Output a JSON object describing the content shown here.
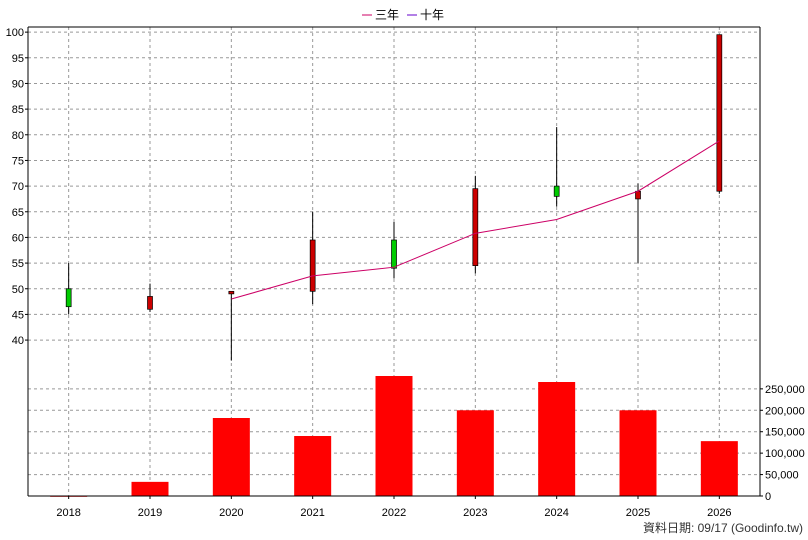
{
  "chart_data": {
    "type": "candlestick+line+bar",
    "legend": [
      {
        "name": "三年",
        "color": "#cc0066"
      },
      {
        "name": "十年",
        "color": "#6600cc"
      }
    ],
    "x": [
      "2018",
      "2019",
      "2020",
      "2021",
      "2022",
      "2023",
      "2024",
      "2025",
      "2026"
    ],
    "price_axis": {
      "ylim": [
        33,
        101
      ],
      "ticks": [
        40,
        45,
        50,
        55,
        60,
        65,
        70,
        75,
        80,
        85,
        90,
        95,
        100
      ]
    },
    "candles": [
      {
        "year": "2018",
        "open": 46.5,
        "close": 50.0,
        "high": 55.0,
        "low": 45.0,
        "color": "#00cc00"
      },
      {
        "year": "2019",
        "open": 48.5,
        "close": 46.0,
        "high": 51.0,
        "low": 45.5,
        "color": "#cc0000"
      },
      {
        "year": "2020",
        "open": 49.5,
        "close": 49.0,
        "high": 49.5,
        "low": 36.0,
        "color": "#cc0000"
      },
      {
        "year": "2021",
        "open": 59.5,
        "close": 49.5,
        "high": 65.0,
        "low": 47.0,
        "color": "#cc0000"
      },
      {
        "year": "2022",
        "open": 54.0,
        "close": 59.5,
        "high": 63.0,
        "low": 52.0,
        "color": "#00cc00"
      },
      {
        "year": "2023",
        "open": 69.5,
        "close": 54.5,
        "high": 72.0,
        "low": 53.0,
        "color": "#cc0000"
      },
      {
        "year": "2024",
        "open": 68.0,
        "close": 70.0,
        "high": 81.5,
        "low": 66.0,
        "color": "#00cc00"
      },
      {
        "year": "2025",
        "open": 69.0,
        "close": 67.5,
        "high": 70.5,
        "low": 55.0,
        "color": "#cc0000"
      },
      {
        "year": "2026",
        "open": 99.5,
        "close": 69.0,
        "high": 99.5,
        "low": 68.5,
        "color": "#cc0000"
      }
    ],
    "series": [
      {
        "name": "三年",
        "x": [
          "2020",
          "2021",
          "2022",
          "2023",
          "2024",
          "2025",
          "2026"
        ],
        "values": [
          48.0,
          52.5,
          54.2,
          60.8,
          63.5,
          69.0,
          78.8
        ]
      }
    ],
    "volume_axis": {
      "ylim": [
        0,
        280000
      ],
      "ticks": [
        0,
        50000,
        100000,
        150000,
        200000,
        250000
      ],
      "tick_labels": [
        "0",
        "50,000",
        "100,000",
        "150,000",
        "200,000",
        "250,000"
      ]
    },
    "volume": [
      {
        "year": "2018",
        "value": 500
      },
      {
        "year": "2019",
        "value": 33000
      },
      {
        "year": "2020",
        "value": 182000
      },
      {
        "year": "2021",
        "value": 140000
      },
      {
        "year": "2022",
        "value": 280000
      },
      {
        "year": "2023",
        "value": 200000
      },
      {
        "year": "2024",
        "value": 266000
      },
      {
        "year": "2025",
        "value": 200000
      },
      {
        "year": "2026",
        "value": 128000
      }
    ],
    "grid": true
  },
  "footer_text": "資料日期: 09/17  (Goodinfo.tw)",
  "colors": {
    "volume_bar": "#ff0000",
    "grid": "#999999",
    "axis": "#000000"
  }
}
